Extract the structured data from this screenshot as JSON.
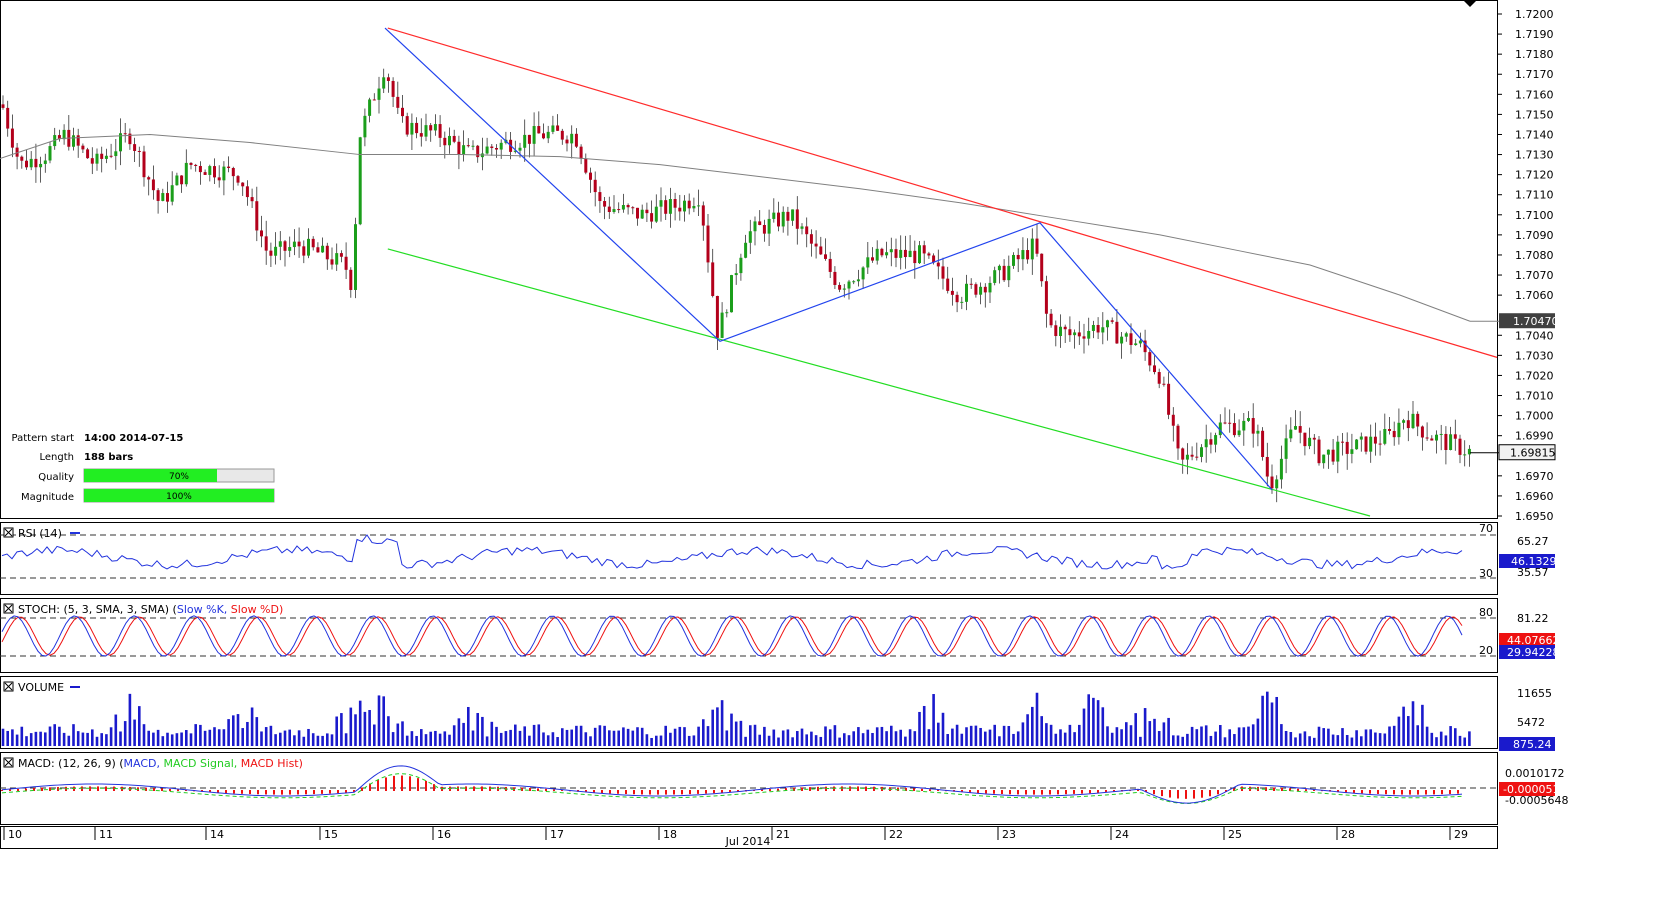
{
  "pattern_info": {
    "rows": [
      {
        "label": "Pattern start",
        "value": "14:00 2014-07-15"
      },
      {
        "label": "Length",
        "value": "188 bars"
      }
    ],
    "quality_label": "Quality",
    "quality_value": 0.7,
    "quality_text": "70%",
    "magnitude_label": "Magnitude",
    "magnitude_value": 1.0,
    "magnitude_text": "100%"
  },
  "panels": {
    "rsi": {
      "title": "RSI (14)",
      "levels": [
        "70",
        "65.27",
        "30"
      ],
      "last": "46.1329",
      "hidden_label": "35.57"
    },
    "stoch": {
      "title_prefix": "STOCH: (5, 3, SMA, 3, SMA)",
      "k_label": "Slow %K,",
      "d_label": "Slow %D)",
      "levels": [
        "80",
        "81.22",
        "20"
      ],
      "last_k": "44.07662",
      "last_d": "29.94228"
    },
    "volume": {
      "title": "VOLUME",
      "levels": [
        "11655",
        "5472"
      ],
      "last": "875.24"
    },
    "macd": {
      "title_prefix": "MACD: (12, 26, 9) (",
      "macd_label": "MACD,",
      "signal_label": "MACD Signal,",
      "hist_label": "MACD Hist)",
      "levels": [
        "0.0010172",
        "-0.0005648"
      ],
      "last": "-0.0000514"
    }
  },
  "price_axis": {
    "ticks": [
      "1.7200",
      "1.7190",
      "1.7180",
      "1.7170",
      "1.7160",
      "1.7150",
      "1.7140",
      "1.7130",
      "1.7120",
      "1.7110",
      "1.7100",
      "1.7090",
      "1.7080",
      "1.7070",
      "1.7060",
      "1.7040",
      "1.7030",
      "1.7020",
      "1.7010",
      "1.7000",
      "1.6990",
      "1.6970",
      "1.6960",
      "1.6950"
    ],
    "ma_badge": "1.70470",
    "last_badge": "1.69815"
  },
  "time_axis": {
    "days": [
      "10",
      "11",
      "14",
      "15",
      "16",
      "17",
      "18",
      "21",
      "22",
      "23",
      "24",
      "25",
      "28",
      "29"
    ],
    "month_label": "Jul 2014"
  },
  "colors": {
    "up": "#1b9e1b",
    "down": "#b3001b",
    "resistance": "#ff2b2b",
    "support": "#22dd22",
    "zigzag": "#2244ee",
    "ma": "#808080",
    "rsi": "#2233dd",
    "stoch_k": "#2233dd",
    "stoch_d": "#ee1111",
    "volume": "#1a1acc",
    "macd": "#2233dd",
    "macd_signal": "#22cc22",
    "macd_hist": "#ee1111"
  },
  "chart_data": {
    "type": "candlestick",
    "symbol_pair_pattern": "channel down",
    "y_range": [
      1.695,
      1.72
    ],
    "x_categories": [
      "10",
      "11",
      "14",
      "15",
      "16",
      "17",
      "18",
      "21",
      "22",
      "23",
      "24",
      "25",
      "28",
      "29"
    ],
    "resistance_line": {
      "start": {
        "day": "15",
        "price": 1.7193
      },
      "end": {
        "day": "29",
        "price": 1.7029
      }
    },
    "support_line": {
      "start": {
        "day": "15",
        "price": 1.7083
      },
      "end": {
        "day": "29",
        "price": 1.695
      }
    },
    "zigzag_points": [
      {
        "day": "15",
        "price": 1.7193
      },
      {
        "day": "18",
        "price": 1.7037
      },
      {
        "day": "23",
        "price": 1.7096
      },
      {
        "day": "25",
        "price": 1.6963
      }
    ],
    "moving_average_last": 1.7047,
    "last_close": 1.69815,
    "rsi_last": 46.1329,
    "stoch_last": {
      "k": 44.07662,
      "d": 29.94228
    },
    "volume_last": 875.24,
    "macd_last": -5.14e-05
  }
}
